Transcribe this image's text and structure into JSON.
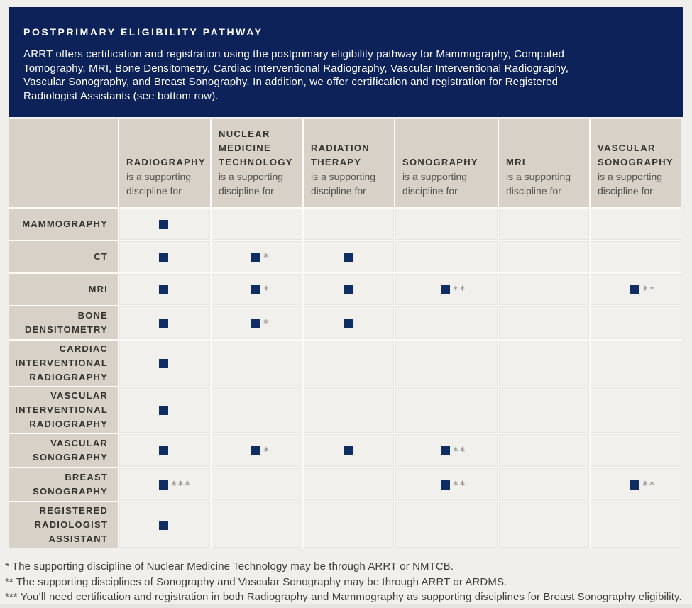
{
  "banner": {
    "title": "POSTPRIMARY ELIGIBILITY PATHWAY",
    "body_lines": [
      "ARRT offers certification and registration using the postprimary eligibility pathway for Mammography, Computed",
      "Tomography, MRI, Bone Densitometry, Cardiac Interventional Radiography, Vascular Interventional Radiography,",
      "Vascular Sonography, and Breast Sonography. In addition, we offer certification and registration for Registered",
      "Radiologist Assistants (see bottom row)."
    ]
  },
  "matrix": {
    "column_subtitle": "is a supporting discipline for",
    "columns": [
      "RADIOGRAPHY",
      "NUCLEAR MEDICINE TECHNOLOGY",
      "RADIATION THERAPY",
      "SONOGRAPHY",
      "MRI",
      "VASCULAR SONOGRAPHY"
    ],
    "rows": [
      {
        "label": "MAMMOGRAPHY",
        "cells": [
          {
            "square": true,
            "note": ""
          },
          null,
          null,
          null,
          null,
          null
        ]
      },
      {
        "label": "CT",
        "cells": [
          {
            "square": true,
            "note": ""
          },
          {
            "square": true,
            "note": "*"
          },
          {
            "square": true,
            "note": ""
          },
          null,
          null,
          null
        ]
      },
      {
        "label": "MRI",
        "cells": [
          {
            "square": true,
            "note": ""
          },
          {
            "square": true,
            "note": "*"
          },
          {
            "square": true,
            "note": ""
          },
          {
            "square": true,
            "note": "**"
          },
          null,
          {
            "square": true,
            "note": "**"
          }
        ]
      },
      {
        "label": "BONE DENSITOMETRY",
        "cells": [
          {
            "square": true,
            "note": ""
          },
          {
            "square": true,
            "note": "*"
          },
          {
            "square": true,
            "note": ""
          },
          null,
          null,
          null
        ]
      },
      {
        "label": "CARDIAC INTERVENTIONAL RADIOGRAPHY",
        "cells": [
          {
            "square": true,
            "note": ""
          },
          null,
          null,
          null,
          null,
          null
        ]
      },
      {
        "label": "VASCULAR INTERVENTIONAL RADIOGRAPHY",
        "cells": [
          {
            "square": true,
            "note": ""
          },
          null,
          null,
          null,
          null,
          null
        ]
      },
      {
        "label": "VASCULAR SONOGRAPHY",
        "cells": [
          {
            "square": true,
            "note": ""
          },
          {
            "square": true,
            "note": "*"
          },
          {
            "square": true,
            "note": ""
          },
          {
            "square": true,
            "note": "**"
          },
          null,
          null
        ]
      },
      {
        "label": "BREAST SONOGRAPHY",
        "cells": [
          {
            "square": true,
            "note": "***"
          },
          null,
          null,
          {
            "square": true,
            "note": "**"
          },
          null,
          {
            "square": true,
            "note": "**"
          }
        ]
      },
      {
        "label": "REGISTERED RADIOLOGIST ASSISTANT",
        "cells": [
          {
            "square": true,
            "note": ""
          },
          null,
          null,
          null,
          null,
          null
        ]
      }
    ]
  },
  "footnotes": [
    "* The supporting discipline of Nuclear Medicine Technology may be through ARRT or NMTCB.",
    "** The supporting disciplines of Sonography and Vascular Sonography may be through ARRT or ARDMS.",
    "*** You’ll need certification and registration in both Radiography and Mammography as supporting disciplines for Breast Sonography eligibility."
  ],
  "colors": {
    "banner_navy": "#0c2259",
    "square_navy": "#0f2c63",
    "header_cell_beige": "#d7d1c7",
    "data_cell": "#f1f0ec",
    "page_background": "#f0efeb",
    "asterisk_gray": "#8f8d88"
  }
}
